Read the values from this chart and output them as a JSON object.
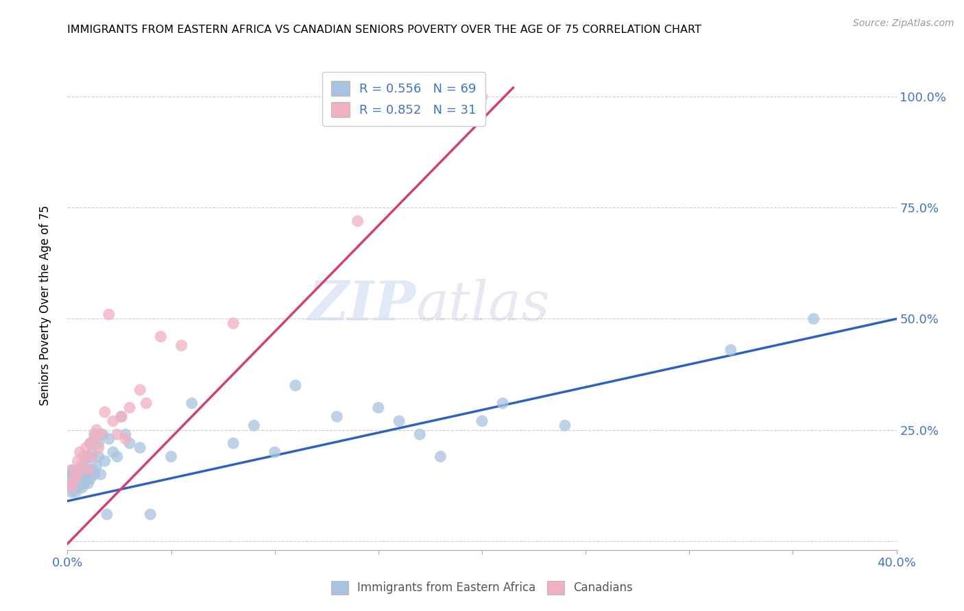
{
  "title": "IMMIGRANTS FROM EASTERN AFRICA VS CANADIAN SENIORS POVERTY OVER THE AGE OF 75 CORRELATION CHART",
  "source": "Source: ZipAtlas.com",
  "ylabel": "Seniors Poverty Over the Age of 75",
  "xlim": [
    0.0,
    0.4
  ],
  "ylim": [
    -0.02,
    1.08
  ],
  "xticks": [
    0.0,
    0.05,
    0.1,
    0.15,
    0.2,
    0.25,
    0.3,
    0.35,
    0.4
  ],
  "yticks": [
    0.0,
    0.25,
    0.5,
    0.75,
    1.0
  ],
  "blue_color": "#a8c4e0",
  "pink_color": "#f0b0c0",
  "blue_line_color": "#3060c0",
  "pink_line_color": "#d04070",
  "text_color": "#4472c4",
  "R_blue": 0.556,
  "N_blue": 69,
  "R_pink": 0.852,
  "N_pink": 31,
  "watermark_zip": "ZIP",
  "watermark_atlas": "atlas",
  "blue_scatter_x": [
    0.001,
    0.001,
    0.001,
    0.002,
    0.002,
    0.002,
    0.002,
    0.003,
    0.003,
    0.003,
    0.003,
    0.004,
    0.004,
    0.004,
    0.004,
    0.005,
    0.005,
    0.005,
    0.006,
    0.006,
    0.006,
    0.007,
    0.007,
    0.007,
    0.008,
    0.008,
    0.008,
    0.009,
    0.009,
    0.01,
    0.01,
    0.01,
    0.011,
    0.011,
    0.012,
    0.012,
    0.013,
    0.013,
    0.014,
    0.015,
    0.015,
    0.016,
    0.017,
    0.018,
    0.019,
    0.02,
    0.022,
    0.024,
    0.026,
    0.028,
    0.03,
    0.035,
    0.04,
    0.05,
    0.06,
    0.08,
    0.09,
    0.1,
    0.11,
    0.13,
    0.15,
    0.16,
    0.17,
    0.18,
    0.2,
    0.21,
    0.24,
    0.32,
    0.36
  ],
  "blue_scatter_y": [
    0.13,
    0.15,
    0.12,
    0.11,
    0.14,
    0.13,
    0.16,
    0.12,
    0.14,
    0.15,
    0.13,
    0.11,
    0.13,
    0.15,
    0.14,
    0.12,
    0.14,
    0.16,
    0.13,
    0.15,
    0.14,
    0.12,
    0.15,
    0.17,
    0.13,
    0.16,
    0.14,
    0.15,
    0.18,
    0.13,
    0.16,
    0.19,
    0.14,
    0.22,
    0.16,
    0.2,
    0.15,
    0.24,
    0.17,
    0.19,
    0.22,
    0.15,
    0.24,
    0.18,
    0.06,
    0.23,
    0.2,
    0.19,
    0.28,
    0.24,
    0.22,
    0.21,
    0.06,
    0.19,
    0.31,
    0.22,
    0.26,
    0.2,
    0.35,
    0.28,
    0.3,
    0.27,
    0.24,
    0.19,
    0.27,
    0.31,
    0.26,
    0.43,
    0.5
  ],
  "pink_scatter_x": [
    0.001,
    0.002,
    0.003,
    0.004,
    0.005,
    0.005,
    0.006,
    0.007,
    0.008,
    0.009,
    0.01,
    0.011,
    0.012,
    0.013,
    0.014,
    0.015,
    0.016,
    0.018,
    0.02,
    0.022,
    0.024,
    0.026,
    0.028,
    0.03,
    0.035,
    0.038,
    0.045,
    0.055,
    0.08,
    0.14,
    0.2
  ],
  "pink_scatter_y": [
    0.13,
    0.12,
    0.16,
    0.14,
    0.18,
    0.15,
    0.2,
    0.17,
    0.19,
    0.21,
    0.16,
    0.22,
    0.19,
    0.23,
    0.25,
    0.21,
    0.24,
    0.29,
    0.51,
    0.27,
    0.24,
    0.28,
    0.23,
    0.3,
    0.34,
    0.31,
    0.46,
    0.44,
    0.49,
    0.72,
    1.0
  ],
  "blue_line_x": [
    0.0,
    0.4
  ],
  "blue_line_y": [
    0.09,
    0.5
  ],
  "pink_line_x": [
    -0.005,
    0.215
  ],
  "pink_line_y": [
    -0.03,
    1.02
  ]
}
